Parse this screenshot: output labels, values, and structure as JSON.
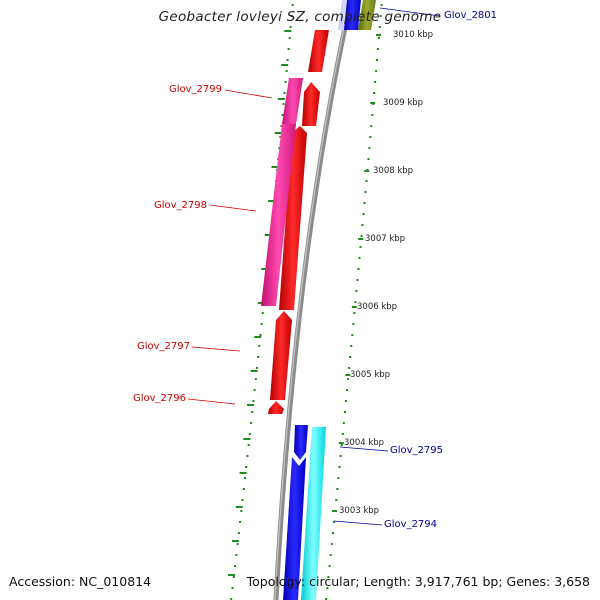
{
  "title": "Geobacter lovleyi SZ, complete genome",
  "accession_text": "Accession: NC_010814",
  "summary_text": "Topology: circular; Length: 3,917,761 bp; Genes: 3,658",
  "scale_labels": [
    "3010 kbp",
    "3009 kbp",
    "3008 kbp",
    "3007 kbp",
    "3006 kbp",
    "3005 kbp",
    "3004 kbp",
    "3003 kbp"
  ],
  "gene_labels": [
    {
      "name": "Glov_2801",
      "strand": "forward"
    },
    {
      "name": "Glov_2799",
      "strand": "reverse"
    },
    {
      "name": "Glov_2798",
      "strand": "reverse"
    },
    {
      "name": "Glov_2797",
      "strand": "reverse"
    },
    {
      "name": "Glov_2796",
      "strand": "reverse"
    },
    {
      "name": "Glov_2795",
      "strand": "forward"
    },
    {
      "name": "Glov_2794",
      "strand": "forward"
    }
  ],
  "colors": {
    "backbone": "#8c8c8c",
    "cds_reverse": "#ff0000",
    "gene_reverse": "#ff2a9a",
    "cds_forward": "#0000ff",
    "gene_forward": "#00ffff",
    "other_feature": "#7a8a1a",
    "dotted_track": "#1e8c1e",
    "label_reverse": "#cc0000",
    "label_forward": "#000099"
  }
}
